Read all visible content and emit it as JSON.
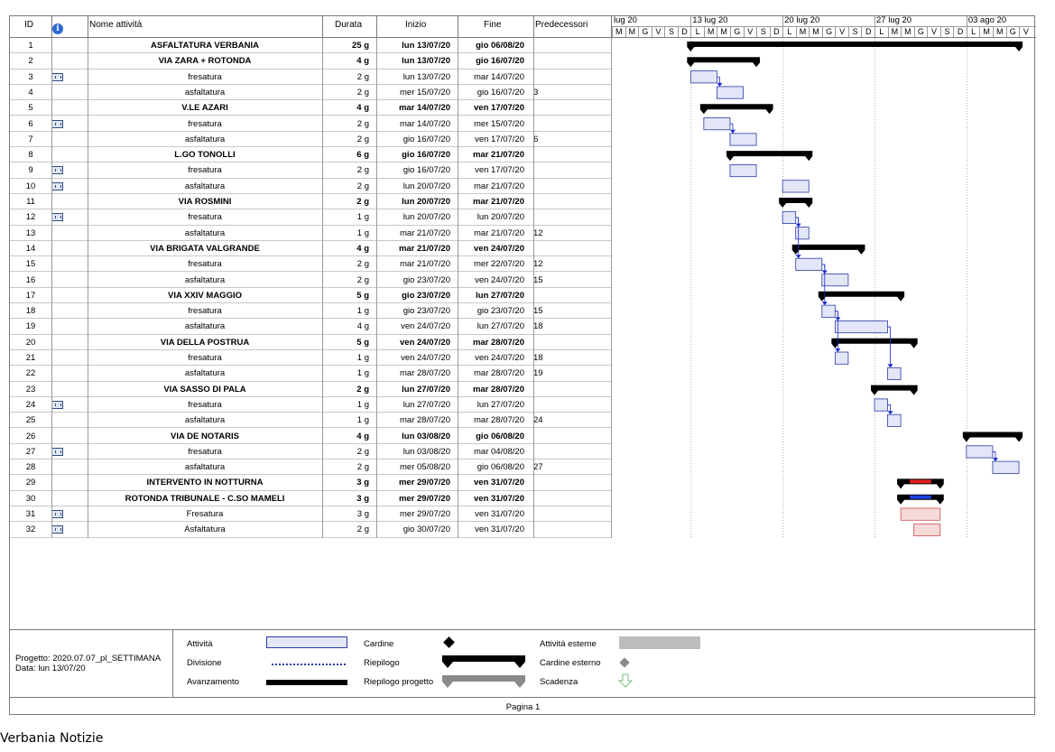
{
  "headers": {
    "id": "ID",
    "info_icon": "info-icon",
    "name": "Nome attività",
    "duration": "Durata",
    "start": "Inizio",
    "finish": "Fine",
    "predecessors": "Predecessori"
  },
  "timescale": {
    "weeks": [
      "lug 20",
      "13 lug 20",
      "20 lug 20",
      "27 lug 20",
      "03 ago 20"
    ],
    "days": [
      "M",
      "M",
      "G",
      "V",
      "S",
      "D",
      "L",
      "M",
      "M",
      "G",
      "V",
      "S",
      "D",
      "L",
      "M",
      "M",
      "G",
      "V",
      "S",
      "D",
      "L",
      "M",
      "M",
      "G",
      "V",
      "S",
      "D",
      "L",
      "M",
      "M",
      "G",
      "V"
    ]
  },
  "tasks": [
    {
      "id": "1",
      "cal": false,
      "name": "ASFALTATURA VERBANIA",
      "dur": "25 g",
      "start": "lun 13/07/20",
      "finish": "gio 06/08/20",
      "pred": "",
      "summary": true,
      "s": 6,
      "f": 31
    },
    {
      "id": "2",
      "cal": false,
      "name": "VIA ZARA + ROTONDA",
      "dur": "4 g",
      "start": "lun 13/07/20",
      "finish": "gio 16/07/20",
      "pred": "",
      "summary": true,
      "s": 6,
      "f": 11
    },
    {
      "id": "3",
      "cal": true,
      "name": "fresatura",
      "dur": "2 g",
      "start": "lun 13/07/20",
      "finish": "mar 14/07/20",
      "pred": "",
      "summary": false,
      "s": 6,
      "f": 8
    },
    {
      "id": "4",
      "cal": false,
      "name": "asfaltatura",
      "dur": "2 g",
      "start": "mer 15/07/20",
      "finish": "gio 16/07/20",
      "pred": "3",
      "summary": false,
      "s": 8,
      "f": 10
    },
    {
      "id": "5",
      "cal": false,
      "name": "V.LE AZARI",
      "dur": "4 g",
      "start": "mar 14/07/20",
      "finish": "ven 17/07/20",
      "pred": "",
      "summary": true,
      "s": 7,
      "f": 12
    },
    {
      "id": "6",
      "cal": true,
      "name": "fresatura",
      "dur": "2 g",
      "start": "mar 14/07/20",
      "finish": "mer 15/07/20",
      "pred": "",
      "summary": false,
      "s": 7,
      "f": 9
    },
    {
      "id": "7",
      "cal": false,
      "name": "asfaltatura",
      "dur": "2 g",
      "start": "gio 16/07/20",
      "finish": "ven 17/07/20",
      "pred": "6",
      "summary": false,
      "s": 9,
      "f": 11
    },
    {
      "id": "8",
      "cal": false,
      "name": "L.GO TONOLLI",
      "dur": "6 g",
      "start": "gio 16/07/20",
      "finish": "mar 21/07/20",
      "pred": "",
      "summary": true,
      "s": 9,
      "f": 15
    },
    {
      "id": "9",
      "cal": true,
      "name": "fresatura",
      "dur": "2 g",
      "start": "gio 16/07/20",
      "finish": "ven 17/07/20",
      "pred": "",
      "summary": false,
      "s": 9,
      "f": 11
    },
    {
      "id": "10",
      "cal": true,
      "name": "asfaltatura",
      "dur": "2 g",
      "start": "lun 20/07/20",
      "finish": "mar 21/07/20",
      "pred": "",
      "summary": false,
      "s": 13,
      "f": 15
    },
    {
      "id": "11",
      "cal": false,
      "name": "VIA ROSMINI",
      "dur": "2 g",
      "start": "lun 20/07/20",
      "finish": "mar 21/07/20",
      "pred": "",
      "summary": true,
      "s": 13,
      "f": 15
    },
    {
      "id": "12",
      "cal": true,
      "name": "fresatura",
      "dur": "1 g",
      "start": "lun 20/07/20",
      "finish": "lun 20/07/20",
      "pred": "",
      "summary": false,
      "s": 13,
      "f": 14
    },
    {
      "id": "13",
      "cal": false,
      "name": "asfaltatura",
      "dur": "1 g",
      "start": "mar 21/07/20",
      "finish": "mar 21/07/20",
      "pred": "12",
      "summary": false,
      "s": 14,
      "f": 15
    },
    {
      "id": "14",
      "cal": false,
      "name": "VIA BRIGATA VALGRANDE",
      "dur": "4 g",
      "start": "mar 21/07/20",
      "finish": "ven 24/07/20",
      "pred": "",
      "summary": true,
      "s": 14,
      "f": 19
    },
    {
      "id": "15",
      "cal": false,
      "name": "fresatura",
      "dur": "2 g",
      "start": "mar 21/07/20",
      "finish": "mer 22/07/20",
      "pred": "12",
      "summary": false,
      "s": 14,
      "f": 16
    },
    {
      "id": "16",
      "cal": false,
      "name": "asfaltatura",
      "dur": "2 g",
      "start": "gio 23/07/20",
      "finish": "ven 24/07/20",
      "pred": "15",
      "summary": false,
      "s": 16,
      "f": 18
    },
    {
      "id": "17",
      "cal": false,
      "name": "VIA XXIV MAGGIO",
      "dur": "5 g",
      "start": "gio 23/07/20",
      "finish": "lun 27/07/20",
      "pred": "",
      "summary": true,
      "s": 16,
      "f": 22
    },
    {
      "id": "18",
      "cal": false,
      "name": "fresatura",
      "dur": "1 g",
      "start": "gio 23/07/20",
      "finish": "gio 23/07/20",
      "pred": "15",
      "summary": false,
      "s": 16,
      "f": 17
    },
    {
      "id": "19",
      "cal": false,
      "name": "asfaltatura",
      "dur": "4 g",
      "start": "ven 24/07/20",
      "finish": "lun 27/07/20",
      "pred": "18",
      "summary": false,
      "s": 17,
      "f": 21
    },
    {
      "id": "20",
      "cal": false,
      "name": "VIA DELLA POSTRUA",
      "dur": "5 g",
      "start": "ven 24/07/20",
      "finish": "mar 28/07/20",
      "pred": "",
      "summary": true,
      "s": 17,
      "f": 23
    },
    {
      "id": "21",
      "cal": false,
      "name": "fresatura",
      "dur": "1 g",
      "start": "ven 24/07/20",
      "finish": "ven 24/07/20",
      "pred": "18",
      "summary": false,
      "s": 17,
      "f": 18
    },
    {
      "id": "22",
      "cal": false,
      "name": "asfaltatura",
      "dur": "1 g",
      "start": "mar 28/07/20",
      "finish": "mar 28/07/20",
      "pred": "19",
      "summary": false,
      "s": 21,
      "f": 22
    },
    {
      "id": "23",
      "cal": false,
      "name": "VIA SASSO DI PALA",
      "dur": "2 g",
      "start": "lun 27/07/20",
      "finish": "mar 28/07/20",
      "pred": "",
      "summary": true,
      "s": 20,
      "f": 23
    },
    {
      "id": "24",
      "cal": true,
      "name": "fresatura",
      "dur": "1 g",
      "start": "lun 27/07/20",
      "finish": "lun 27/07/20",
      "pred": "",
      "summary": false,
      "s": 20,
      "f": 21
    },
    {
      "id": "25",
      "cal": false,
      "name": "asfaltatura",
      "dur": "1 g",
      "start": "mar 28/07/20",
      "finish": "mar 28/07/20",
      "pred": "24",
      "summary": false,
      "s": 21,
      "f": 22
    },
    {
      "id": "26",
      "cal": false,
      "name": "VIA DE NOTARIS",
      "dur": "4 g",
      "start": "lun 03/08/20",
      "finish": "gio 06/08/20",
      "pred": "",
      "summary": true,
      "s": 27,
      "f": 31
    },
    {
      "id": "27",
      "cal": true,
      "name": "fresatura",
      "dur": "2 g",
      "start": "lun 03/08/20",
      "finish": "mar 04/08/20",
      "pred": "",
      "summary": false,
      "s": 27,
      "f": 29
    },
    {
      "id": "28",
      "cal": false,
      "name": "asfaltatura",
      "dur": "2 g",
      "start": "mer 05/08/20",
      "finish": "gio 06/08/20",
      "pred": "27",
      "summary": false,
      "s": 29,
      "f": 31
    },
    {
      "id": "29",
      "cal": false,
      "name": "INTERVENTO IN NOTTURNA",
      "dur": "3 g",
      "start": "mer 29/07/20",
      "finish": "ven 31/07/20",
      "pred": "",
      "summary": true,
      "s": 22,
      "f": 25,
      "mark": "#e02020"
    },
    {
      "id": "30",
      "cal": false,
      "name": "ROTONDA TRIBUNALE - C.SO MAMELI",
      "dur": "3 g",
      "start": "mer 29/07/20",
      "finish": "ven 31/07/20",
      "pred": "",
      "summary": true,
      "s": 22,
      "f": 25,
      "mark": "#1f3fe0"
    },
    {
      "id": "31",
      "cal": true,
      "name": "Fresatura",
      "dur": "3 g",
      "start": "mer 29/07/20",
      "finish": "ven 31/07/20",
      "pred": "",
      "summary": false,
      "s": 22,
      "f": 25,
      "red": true
    },
    {
      "id": "32",
      "cal": true,
      "name": "Asfaltatura",
      "dur": "2 g",
      "start": "gio 30/07/20",
      "finish": "ven 31/07/20",
      "pred": "",
      "summary": false,
      "s": 23,
      "f": 25,
      "red": true
    }
  ],
  "legend": {
    "project": "Progetto: 2020.07.07_pl_SETTIMANA",
    "date": "Data: lun 13/07/20",
    "task": "Attività",
    "split": "Divisione",
    "progress": "Avanzamento",
    "milestone": "Cardine",
    "summary": "Riepilogo",
    "project_summary": "Riepilogo progetto",
    "external_tasks": "Attività esterne",
    "external_milestone": "Cardine esterno",
    "deadline": "Scadenza"
  },
  "page": "Pagina 1",
  "footer": "Verbania Notizie",
  "colors": {
    "task_fill": "#e3e6f6",
    "task_border": "#2a3aa8",
    "summary": "#000000",
    "link": "#1a2ad0",
    "red_fill": "#f6dada",
    "red_border": "#d05050"
  }
}
